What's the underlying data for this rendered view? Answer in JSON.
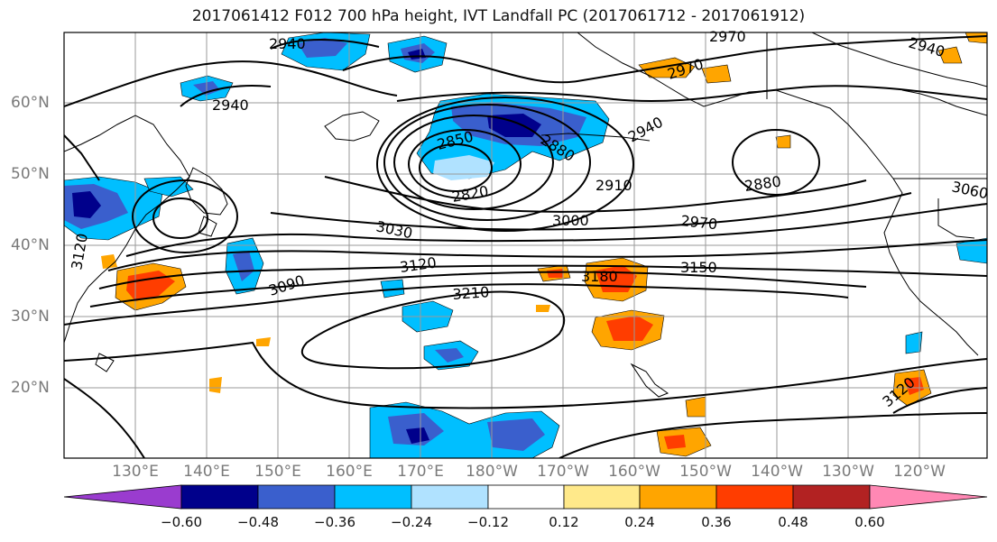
{
  "title": "2017061412 F012 700 hPa height, IVT Landfall PC (2017061712 - 2017061912)",
  "lon_labels": [
    "130°E",
    "140°E",
    "150°E",
    "160°E",
    "170°E",
    "180°W",
    "170°W",
    "160°W",
    "150°W",
    "140°W",
    "130°W",
    "120°W"
  ],
  "lat_labels": [
    "60°N",
    "50°N",
    "40°N",
    "30°N",
    "20°N"
  ],
  "contour_labels": [
    "2940",
    "2940",
    "2970",
    "2970",
    "2940",
    "2850",
    "2880",
    "2820",
    "2910",
    "2880",
    "3060",
    "3030",
    "3000",
    "2970",
    "3120",
    "3090",
    "3180",
    "3150",
    "3210",
    "3120",
    "2940",
    "3120"
  ],
  "colorbar": {
    "ticks": [
      "−0.60",
      "−0.48",
      "−0.36",
      "−0.24",
      "−0.12",
      "0.12",
      "0.24",
      "0.36",
      "0.48",
      "0.60"
    ],
    "colors": [
      "#9a3ccf",
      "#00008b",
      "#3a5fcd",
      "#00bfff",
      "#b0e2ff",
      "#ffffff",
      "#ffe98a",
      "#ffa500",
      "#ff3d00",
      "#b22222",
      "#ff88b4"
    ]
  },
  "colors": {
    "contour": "#000000",
    "coast": "#000000",
    "grid": "#9a9a9a"
  }
}
